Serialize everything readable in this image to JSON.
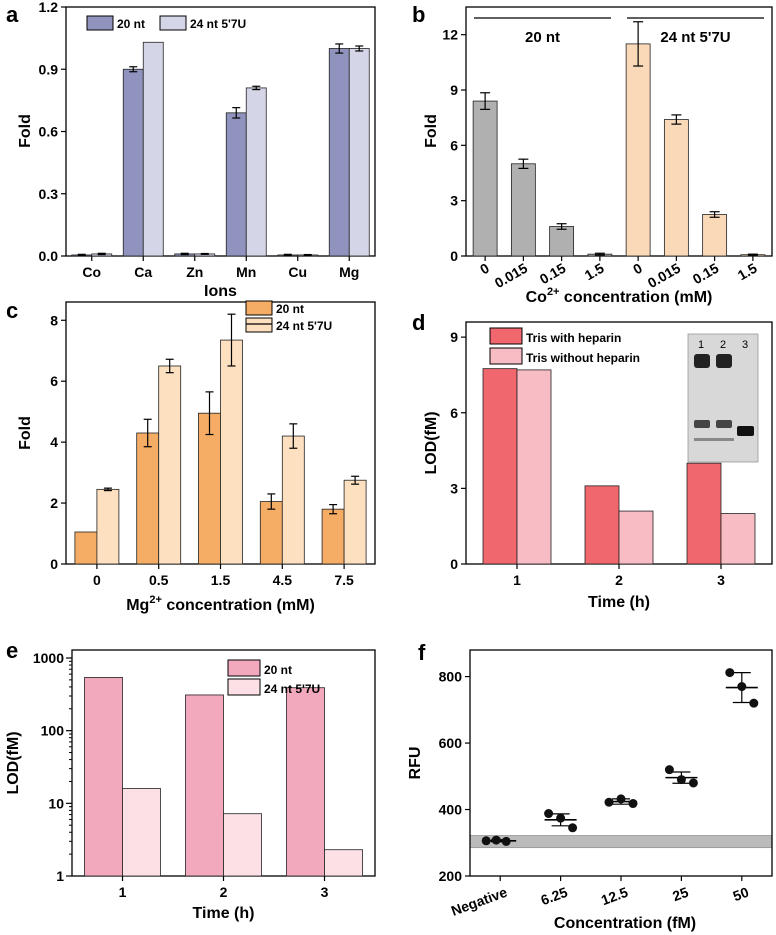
{
  "chart_data": [
    {
      "id": "a",
      "type": "bar",
      "panel_label": "a",
      "xlabel": "Ions",
      "ylabel": "Fold",
      "categories": [
        "Co",
        "Ca",
        "Zn",
        "Mn",
        "Cu",
        "Mg"
      ],
      "ylim": [
        0,
        1.2
      ],
      "yticks": [
        "0.0",
        "0.3",
        "0.6",
        "0.9",
        "1.2"
      ],
      "legend_position": "top-left",
      "series": [
        {
          "name": "20 nt",
          "color": "#9093bd",
          "values": [
            0.005,
            0.9,
            0.01,
            0.69,
            0.005,
            1.0
          ],
          "errors": [
            0.003,
            0.012,
            0.003,
            0.025,
            0.003,
            0.022
          ]
        },
        {
          "name": "24 nt 5'7U",
          "color": "#d5d5e8",
          "values": [
            0.01,
            1.03,
            0.01,
            0.81,
            0.005,
            1.0
          ],
          "errors": [
            0.003,
            0,
            0.002,
            0.008,
            0.002,
            0.012
          ]
        }
      ]
    },
    {
      "id": "b",
      "type": "bar",
      "panel_label": "b",
      "xlabel_main": "Co",
      "xlabel_sup": "2+",
      "xlabel_rest": " concentration (mM)",
      "ylabel": "Fold",
      "categories": [
        "0",
        "0.015",
        "0.15",
        "1.5",
        "0",
        "0.015",
        "0.15",
        "1.5"
      ],
      "ylim": [
        0,
        13.5
      ],
      "yticks": [
        "0",
        "3",
        "6",
        "9",
        "12"
      ],
      "groups": [
        {
          "name": "20 nt",
          "color": "#b0b0b0",
          "values": [
            8.4,
            5.0,
            1.6,
            0.1
          ],
          "errors": [
            0.45,
            0.25,
            0.15,
            0.05
          ]
        },
        {
          "name": "24 nt 5'7U",
          "color": "#fad9b8",
          "values": [
            11.5,
            7.4,
            2.25,
            0.07
          ],
          "errors": [
            1.2,
            0.25,
            0.15,
            0.03
          ]
        }
      ]
    },
    {
      "id": "c",
      "type": "bar",
      "panel_label": "c",
      "xlabel_main": "Mg",
      "xlabel_sup": "2+",
      "xlabel_rest": " concentration (mM)",
      "ylabel": "Fold",
      "categories": [
        "0",
        "0.5",
        "1.5",
        "4.5",
        "7.5"
      ],
      "ylim": [
        0,
        8.6
      ],
      "yticks": [
        "0",
        "2",
        "4",
        "6",
        "8"
      ],
      "legend_position": "top-center",
      "series": [
        {
          "name": "20 nt",
          "color": "#f5ad66",
          "values": [
            1.05,
            4.3,
            4.95,
            2.05,
            1.8
          ],
          "errors": [
            0,
            0.45,
            0.7,
            0.25,
            0.15
          ]
        },
        {
          "name": "24 nt 5'7U",
          "color": "#fde0c0",
          "values": [
            2.45,
            6.5,
            7.35,
            4.2,
            2.75
          ],
          "errors": [
            0.04,
            0.22,
            0.85,
            0.4,
            0.13
          ]
        }
      ]
    },
    {
      "id": "d",
      "type": "bar",
      "panel_label": "d",
      "xlabel": "Time (h)",
      "ylabel": "LOD(fM)",
      "categories": [
        "1",
        "2",
        "3"
      ],
      "ylim": [
        0,
        9.6
      ],
      "yticks": [
        "0",
        "3",
        "6",
        "9"
      ],
      "legend_position": "top-left",
      "inset": "gel image",
      "gel_lanes": [
        "1",
        "2",
        "3"
      ],
      "series": [
        {
          "name": "Tris with heparin",
          "color": "#f0676d",
          "values": [
            7.75,
            3.1,
            4.0
          ]
        },
        {
          "name": "Tris without heparin",
          "color": "#f8bcc4",
          "values": [
            7.7,
            2.1,
            2.0
          ]
        }
      ]
    },
    {
      "id": "e",
      "type": "bar",
      "panel_label": "e",
      "xlabel": "Time (h)",
      "ylabel": "LOD(fM)",
      "categories": [
        "1",
        "2",
        "3"
      ],
      "yscale": "log",
      "ylim": [
        1,
        1000
      ],
      "yticks": [
        "1",
        "10",
        "100",
        "1000"
      ],
      "legend_position": "top-right",
      "series": [
        {
          "name": "20 nt",
          "color": "#f2a9bd",
          "values": [
            540,
            310,
            390
          ]
        },
        {
          "name": "24 nt 5'7U",
          "color": "#fde0e6",
          "values": [
            16,
            7.2,
            2.3
          ]
        }
      ]
    },
    {
      "id": "f",
      "type": "scatter",
      "panel_label": "f",
      "xlabel": "Concentration (fM)",
      "ylabel": "RFU",
      "categories": [
        "Negative",
        "6.25",
        "12.5",
        "25",
        "50"
      ],
      "ylim": [
        200,
        880
      ],
      "yticks": [
        "200",
        "400",
        "600",
        "800"
      ],
      "background_band": [
        285,
        322
      ],
      "band_color": "#bbbbbb",
      "points": [
        [
          306,
          308,
          304
        ],
        [
          388,
          345,
          374
        ],
        [
          422,
          418,
          432
        ],
        [
          520,
          480,
          490
        ],
        [
          812,
          720,
          770
        ]
      ],
      "means": [
        306,
        369,
        424,
        496,
        767
      ],
      "sems": [
        3,
        18,
        8,
        17,
        45
      ]
    }
  ]
}
